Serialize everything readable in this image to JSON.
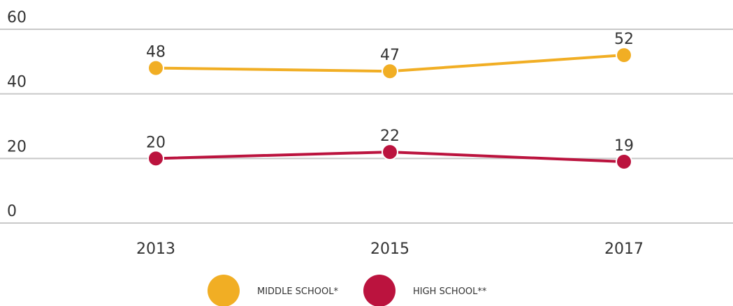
{
  "chart_data": {
    "type": "line",
    "categories": [
      "2013",
      "2015",
      "2017"
    ],
    "series": [
      {
        "name": "MIDDLE SCHOOL*",
        "color": "#f1ae24",
        "values": [
          48,
          47,
          52
        ]
      },
      {
        "name": "HIGH SCHOOL**",
        "color": "#bb133e",
        "values": [
          20,
          22,
          19
        ]
      }
    ],
    "ylim": [
      0,
      60
    ],
    "yticks": [
      0,
      20,
      40,
      60
    ],
    "grid": true,
    "legend": "bottom"
  }
}
